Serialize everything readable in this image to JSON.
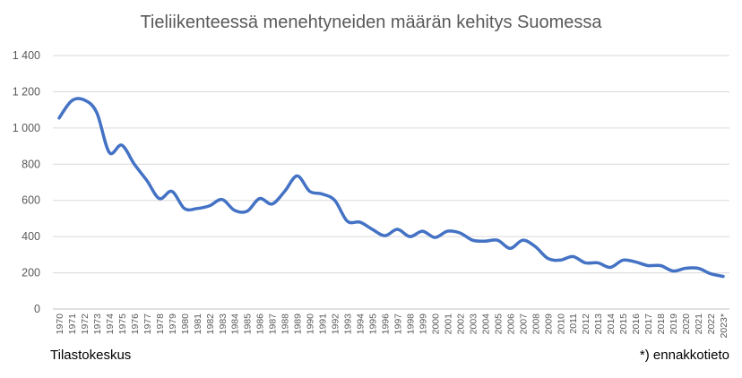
{
  "chart_data": {
    "type": "line",
    "title": "Tieliikenteessä menehtyneiden määrän kehitys Suomessa",
    "xlabel": "",
    "ylabel": "",
    "ylim": [
      0,
      1400
    ],
    "yticks": [
      "0",
      "200",
      "400",
      "600",
      "800",
      "1 000",
      "1 200",
      "1 400"
    ],
    "grid": true,
    "legend": "none",
    "color": "#4472C4",
    "categories": [
      "1970",
      "1971",
      "1972",
      "1973",
      "1974",
      "1975",
      "1976",
      "1977",
      "1978",
      "1979",
      "1980",
      "1981",
      "1982",
      "1983",
      "1984",
      "1985",
      "1986",
      "1987",
      "1988",
      "1989",
      "1990",
      "1991",
      "1992",
      "1993",
      "1994",
      "1995",
      "1996",
      "1997",
      "1998",
      "1999",
      "2000",
      "2001",
      "2002",
      "2003",
      "2004",
      "2005",
      "2006",
      "2007",
      "2008",
      "2009",
      "2010",
      "2011",
      "2012",
      "2013",
      "2014",
      "2015",
      "2016",
      "2017",
      "2018",
      "2019",
      "2020",
      "2021",
      "2022",
      "2023*"
    ],
    "values": [
      1055,
      1150,
      1155,
      1085,
      865,
      905,
      800,
      710,
      610,
      650,
      555,
      555,
      570,
      605,
      545,
      540,
      610,
      580,
      650,
      735,
      650,
      635,
      600,
      485,
      480,
      440,
      405,
      440,
      400,
      430,
      395,
      430,
      420,
      380,
      375,
      380,
      335,
      380,
      345,
      280,
      270,
      290,
      255,
      255,
      230,
      270,
      260,
      240,
      240,
      210,
      225,
      225,
      195,
      180
    ]
  },
  "footer": {
    "source": "Tilastokeskus",
    "note": "*) ennakkotieto"
  }
}
